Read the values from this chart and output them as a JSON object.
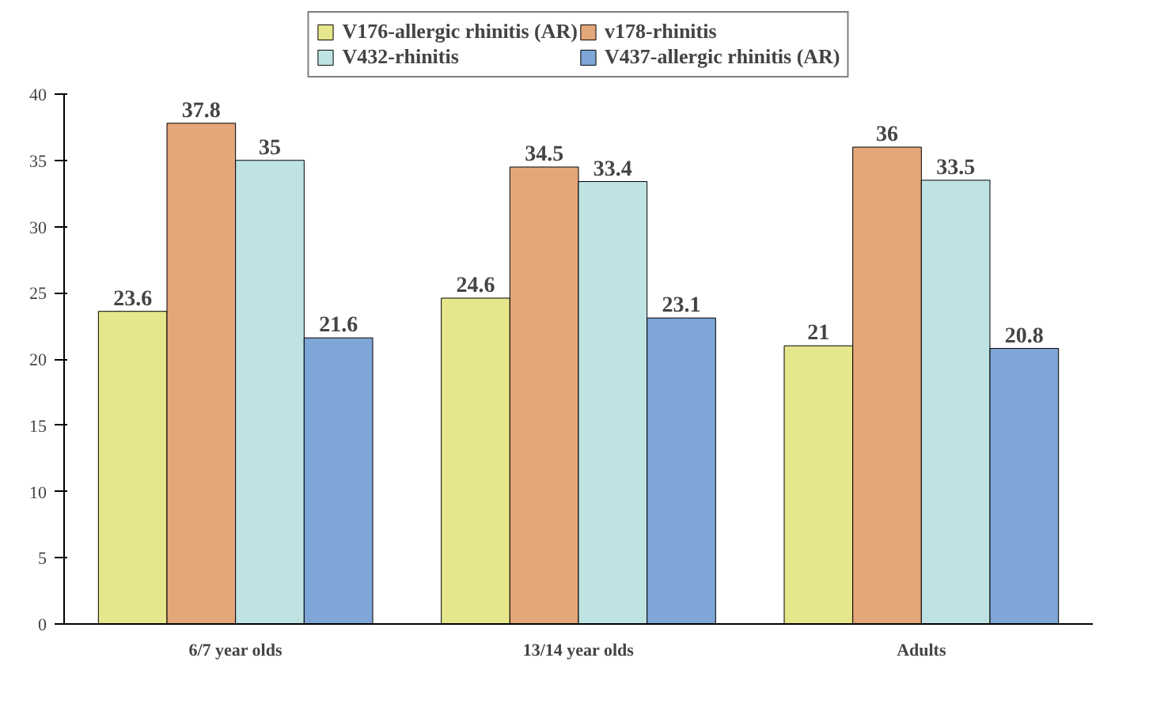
{
  "chart_data": {
    "type": "bar",
    "categories": [
      "6/7 year olds",
      "13/14 year olds",
      "Adults"
    ],
    "series": [
      {
        "name": "V176-allergic rhinitis (AR)",
        "color": "#e6e68c",
        "values": [
          23.6,
          24.6,
          21
        ]
      },
      {
        "name": "v178-rhinitis",
        "color": "#e3a77a",
        "values": [
          37.8,
          34.5,
          36
        ]
      },
      {
        "name": "V432-rhinitis",
        "color": "#bfe3e3",
        "values": [
          35,
          33.4,
          33.5
        ]
      },
      {
        "name": "V437-allergic rhinitis (AR)",
        "color": "#7ea6d6",
        "values": [
          21.6,
          23.1,
          20.8
        ]
      }
    ],
    "ylim": [
      0,
      40
    ],
    "yticks": [
      0,
      5,
      10,
      15,
      20,
      25,
      30,
      35,
      40
    ],
    "grid": false,
    "legend": "top",
    "data_labels": true
  }
}
